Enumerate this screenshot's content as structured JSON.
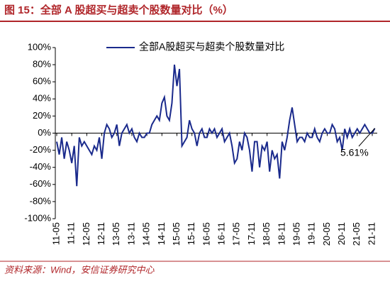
{
  "chart_data": {
    "type": "line",
    "title": "图 15：全部 A 股超买与超卖个股数量对比（%）",
    "source": "资料来源：Wind，安信证券研究中心",
    "categories": [
      "11-05",
      null,
      null,
      null,
      null,
      null,
      "11-11",
      null,
      null,
      null,
      null,
      null,
      "12-05",
      null,
      null,
      null,
      null,
      null,
      "12-11",
      null,
      null,
      null,
      null,
      null,
      "13-05",
      null,
      null,
      null,
      null,
      null,
      "13-11",
      null,
      null,
      null,
      null,
      null,
      "14-05",
      null,
      null,
      null,
      null,
      null,
      "14-11",
      null,
      null,
      null,
      null,
      null,
      "15-05",
      null,
      null,
      null,
      null,
      null,
      "15-11",
      null,
      null,
      null,
      null,
      null,
      "16-05",
      null,
      null,
      null,
      null,
      null,
      "16-11",
      null,
      null,
      null,
      null,
      null,
      "17-05",
      null,
      null,
      null,
      null,
      null,
      "17-11",
      null,
      null,
      null,
      null,
      null,
      "18-05",
      null,
      null,
      null,
      null,
      null,
      "18-11",
      null,
      null,
      null,
      null,
      null,
      "19-05",
      null,
      null,
      null,
      null,
      null,
      "19-11",
      null,
      null,
      null,
      null,
      null,
      "20-05",
      null,
      null,
      null,
      null,
      null,
      "20-11",
      null,
      null,
      null,
      null,
      null,
      "21-05",
      null,
      null,
      null,
      null,
      null,
      "21-11",
      null
    ],
    "series": [
      {
        "name": "全部A股超买与超卖个股数量对比",
        "color": "#1a2a8c",
        "values": [
          -10,
          -25,
          -5,
          -30,
          -10,
          -20,
          -35,
          -15,
          -62,
          -5,
          -15,
          -10,
          -15,
          -20,
          -25,
          -15,
          -20,
          -5,
          -30,
          0,
          10,
          5,
          -5,
          0,
          10,
          -15,
          0,
          5,
          10,
          0,
          5,
          -5,
          -10,
          0,
          -5,
          -5,
          0,
          0,
          10,
          15,
          20,
          15,
          35,
          42,
          20,
          15,
          35,
          80,
          55,
          75,
          -15,
          -10,
          -5,
          15,
          5,
          0,
          -15,
          0,
          5,
          -5,
          -5,
          5,
          0,
          5,
          -5,
          0,
          5,
          -10,
          -5,
          0,
          -15,
          -35,
          -30,
          -10,
          -20,
          0,
          -5,
          -20,
          -45,
          -10,
          -10,
          -40,
          -15,
          -20,
          -10,
          -45,
          -20,
          -30,
          -25,
          -53,
          -10,
          -20,
          -5,
          15,
          30,
          10,
          -10,
          -5,
          -5,
          -10,
          0,
          -5,
          -5,
          5,
          -5,
          -10,
          0,
          5,
          0,
          0,
          10,
          5,
          -10,
          -5,
          -20,
          5,
          -5,
          5,
          -5,
          0,
          5,
          0,
          5,
          10,
          5,
          0,
          0,
          5.61
        ]
      }
    ],
    "annotations": [
      {
        "text": "5.61%"
      }
    ],
    "ylim": [
      -100,
      100
    ],
    "yticks": [
      {
        "value": -100,
        "label": "-100%"
      },
      {
        "value": -80,
        "label": "-80%"
      },
      {
        "value": -60,
        "label": "-60%"
      },
      {
        "value": -40,
        "label": "-40%"
      },
      {
        "value": -20,
        "label": "-20%"
      },
      {
        "value": 0,
        "label": "0%"
      },
      {
        "value": 20,
        "label": "20%"
      },
      {
        "value": 40,
        "label": "40%"
      },
      {
        "value": 60,
        "label": "60%"
      },
      {
        "value": 80,
        "label": "80%"
      },
      {
        "value": 100,
        "label": "100%"
      }
    ],
    "legend": "upper center",
    "grid": false
  }
}
